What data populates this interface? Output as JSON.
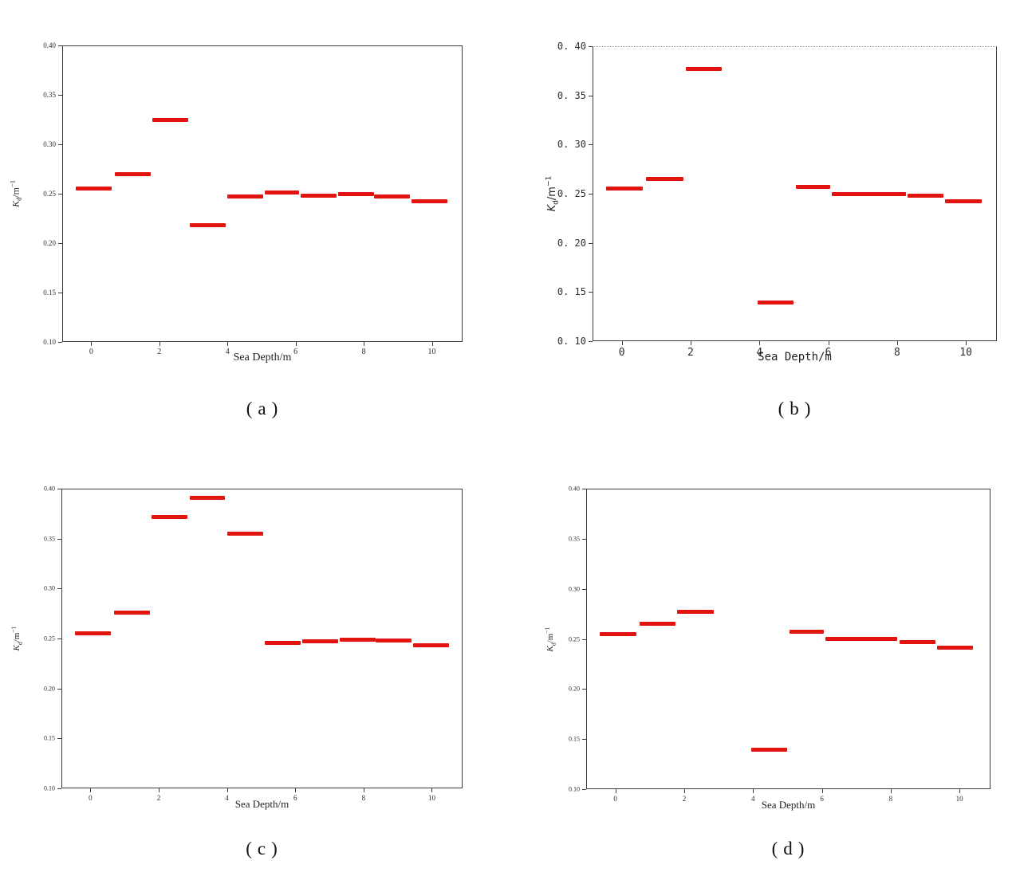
{
  "figure": {
    "marker_color": "#e11410",
    "xlabel": "Sea Depth/m",
    "ylabel_parts": {
      "k": "K",
      "sub": "d",
      "mid": "/m",
      "sup": "−1"
    }
  },
  "chart_data": [
    {
      "id": "a",
      "type": "scatter",
      "marker": "horizontal-dash",
      "caption": "(a)",
      "title": "",
      "xlabel": "Sea Depth/m",
      "ylabel": "Kd/m^-1",
      "xlim": [
        -0.85,
        10.9
      ],
      "ylim": [
        0.1,
        0.4
      ],
      "grid": false,
      "legend": "none",
      "xtick_values": [
        0,
        2,
        4,
        6,
        8,
        10
      ],
      "xtick_labels": [
        "0",
        "2",
        "4",
        "6",
        "8",
        "10"
      ],
      "ytick_values": [
        0.4,
        0.35,
        0.3,
        0.25,
        0.2,
        0.15,
        0.1
      ],
      "ytick_labels": [
        "0.40",
        "0.35",
        "0.30",
        "0.25",
        "0.20",
        "0.15",
        "0.10"
      ],
      "segments": [
        {
          "x0": -0.45,
          "x1": 0.6,
          "y": 0.255
        },
        {
          "x0": 0.7,
          "x1": 1.75,
          "y": 0.27
        },
        {
          "x0": 1.8,
          "x1": 2.85,
          "y": 0.325
        },
        {
          "x0": 2.9,
          "x1": 3.95,
          "y": 0.218
        },
        {
          "x0": 4.0,
          "x1": 5.05,
          "y": 0.247
        },
        {
          "x0": 5.1,
          "x1": 6.1,
          "y": 0.251
        },
        {
          "x0": 6.15,
          "x1": 7.2,
          "y": 0.248
        },
        {
          "x0": 7.25,
          "x1": 8.3,
          "y": 0.25
        },
        {
          "x0": 8.3,
          "x1": 9.35,
          "y": 0.247
        },
        {
          "x0": 9.4,
          "x1": 10.45,
          "y": 0.242
        }
      ]
    },
    {
      "id": "b",
      "type": "scatter",
      "marker": "horizontal-dash",
      "caption": "(b)",
      "title": "",
      "xlabel": "Sea Depth/m",
      "ylabel": "Kd/m^-1",
      "xlim": [
        -0.85,
        10.9
      ],
      "ylim": [
        0.1,
        0.4
      ],
      "grid": false,
      "legend": "none",
      "xtick_values": [
        0,
        2,
        4,
        6,
        8,
        10
      ],
      "xtick_labels": [
        "0",
        "2",
        "4",
        "6",
        "8",
        "10"
      ],
      "ytick_values": [
        0.4,
        0.35,
        0.3,
        0.25,
        0.2,
        0.15,
        0.1
      ],
      "ytick_labels": [
        "0. 40",
        "0. 35",
        "0. 30",
        "0. 25",
        "0. 20",
        "0. 15",
        "0. 10"
      ],
      "segments": [
        {
          "x0": -0.45,
          "x1": 0.6,
          "y": 0.255
        },
        {
          "x0": 0.7,
          "x1": 1.8,
          "y": 0.265
        },
        {
          "x0": 1.85,
          "x1": 2.9,
          "y": 0.377
        },
        {
          "x0": 3.95,
          "x1": 5.0,
          "y": 0.139
        },
        {
          "x0": 5.05,
          "x1": 6.05,
          "y": 0.257
        },
        {
          "x0": 6.1,
          "x1": 8.25,
          "y": 0.25
        },
        {
          "x0": 8.3,
          "x1": 9.35,
          "y": 0.248
        },
        {
          "x0": 9.4,
          "x1": 10.45,
          "y": 0.242
        }
      ]
    },
    {
      "id": "c",
      "type": "scatter",
      "marker": "horizontal-dash",
      "caption": "(c)",
      "title": "",
      "xlabel": "Sea Depth/m",
      "ylabel": "Kd/m^-1",
      "xlim": [
        -0.85,
        10.9
      ],
      "ylim": [
        0.1,
        0.4
      ],
      "grid": false,
      "legend": "none",
      "xtick_values": [
        0,
        2,
        4,
        6,
        8,
        10
      ],
      "xtick_labels": [
        "0",
        "2",
        "4",
        "6",
        "8",
        "10"
      ],
      "ytick_values": [
        0.4,
        0.35,
        0.3,
        0.25,
        0.2,
        0.15,
        0.1
      ],
      "ytick_labels": [
        "0.40",
        "0.35",
        "0.30",
        "0.25",
        "0.20",
        "0.15",
        "0.10"
      ],
      "segments": [
        {
          "x0": -0.45,
          "x1": 0.6,
          "y": 0.255
        },
        {
          "x0": 0.7,
          "x1": 1.75,
          "y": 0.276
        },
        {
          "x0": 1.8,
          "x1": 2.85,
          "y": 0.372
        },
        {
          "x0": 2.9,
          "x1": 3.95,
          "y": 0.391
        },
        {
          "x0": 4.0,
          "x1": 5.05,
          "y": 0.355
        },
        {
          "x0": 5.1,
          "x1": 6.15,
          "y": 0.246
        },
        {
          "x0": 6.2,
          "x1": 7.25,
          "y": 0.247
        },
        {
          "x0": 7.3,
          "x1": 8.35,
          "y": 0.249
        },
        {
          "x0": 8.35,
          "x1": 9.4,
          "y": 0.248
        },
        {
          "x0": 9.45,
          "x1": 10.5,
          "y": 0.243
        }
      ]
    },
    {
      "id": "d",
      "type": "scatter",
      "marker": "horizontal-dash",
      "caption": "(d)",
      "title": "",
      "xlabel": "Sea Depth/m",
      "ylabel": "Kd/m^-1",
      "xlim": [
        -0.85,
        10.9
      ],
      "ylim": [
        0.1,
        0.4
      ],
      "grid": false,
      "legend": "none",
      "xtick_values": [
        0,
        2,
        4,
        6,
        8,
        10
      ],
      "xtick_labels": [
        "0",
        "2",
        "4",
        "6",
        "8",
        "10"
      ],
      "ytick_values": [
        0.4,
        0.35,
        0.3,
        0.25,
        0.2,
        0.15,
        0.1
      ],
      "ytick_labels": [
        "0.40",
        "0.35",
        "0.30",
        "0.25",
        "0.20",
        "0.15",
        "0.10"
      ],
      "segments": [
        {
          "x0": -0.45,
          "x1": 0.6,
          "y": 0.255
        },
        {
          "x0": 0.7,
          "x1": 1.75,
          "y": 0.265
        },
        {
          "x0": 1.8,
          "x1": 2.85,
          "y": 0.277
        },
        {
          "x0": 3.95,
          "x1": 5.0,
          "y": 0.139
        },
        {
          "x0": 5.05,
          "x1": 6.05,
          "y": 0.257
        },
        {
          "x0": 6.1,
          "x1": 8.2,
          "y": 0.25
        },
        {
          "x0": 8.25,
          "x1": 9.3,
          "y": 0.247
        },
        {
          "x0": 9.35,
          "x1": 10.4,
          "y": 0.241
        }
      ]
    }
  ]
}
